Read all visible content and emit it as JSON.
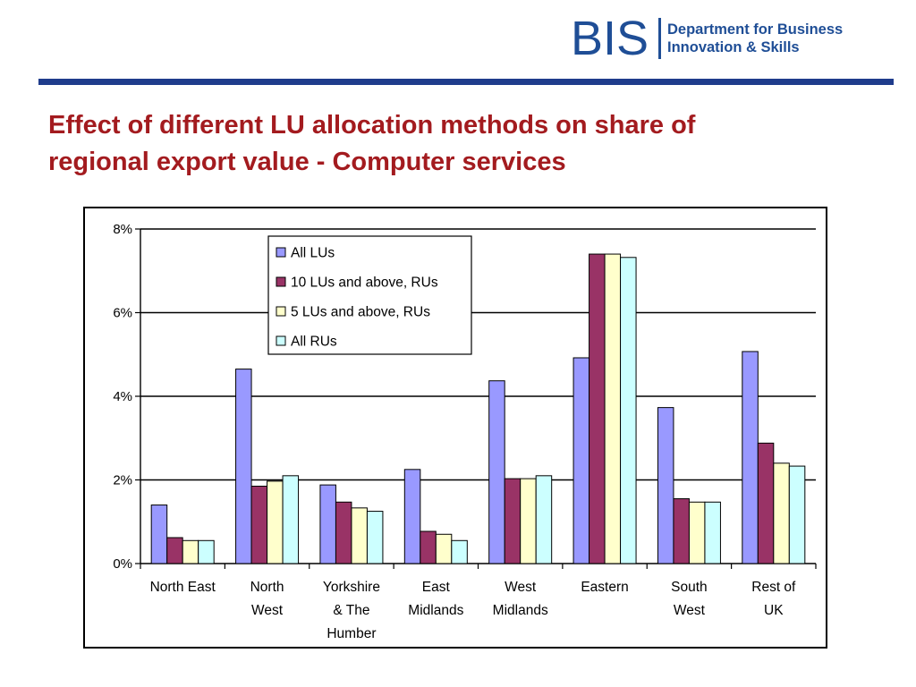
{
  "header": {
    "logo_mark": "BIS",
    "logo_line1": "Department for Business",
    "logo_line2": "Innovation & Skills"
  },
  "slide": {
    "title_line1": "Effect of different LU allocation methods on share of",
    "title_line2": "regional export value - Computer services"
  },
  "colors": {
    "brand_blue": "#1f4e96",
    "rule": "#1f3c8c",
    "title_red": "#a31b1f"
  },
  "chart_data": {
    "type": "bar",
    "categories": [
      [
        "North East"
      ],
      [
        "North",
        "West"
      ],
      [
        "Yorkshire",
        "& The",
        "Humber"
      ],
      [
        "East",
        "Midlands"
      ],
      [
        "West",
        "Midlands"
      ],
      [
        "Eastern"
      ],
      [
        "South",
        "West"
      ],
      [
        "Rest of",
        "UK"
      ]
    ],
    "series": [
      {
        "name": "All LUs",
        "color": "#9999ff",
        "values": [
          1.4,
          4.65,
          1.88,
          2.25,
          4.37,
          4.92,
          3.73,
          5.07
        ]
      },
      {
        "name": "10 LUs and above, RUs",
        "color": "#993366",
        "values": [
          0.62,
          1.85,
          1.47,
          0.77,
          2.03,
          7.4,
          1.55,
          2.88
        ]
      },
      {
        "name": "5 LUs and above, RUs",
        "color": "#ffffcc",
        "values": [
          0.55,
          1.97,
          1.33,
          0.7,
          2.03,
          7.4,
          1.47,
          2.4
        ]
      },
      {
        "name": "All RUs",
        "color": "#ccffff",
        "values": [
          0.55,
          2.1,
          1.25,
          0.55,
          2.1,
          7.32,
          1.47,
          2.33
        ]
      }
    ],
    "ylim": [
      0,
      8
    ],
    "yticks": [
      "0%",
      "2%",
      "4%",
      "6%",
      "8%"
    ],
    "grid": true,
    "legend_position": "top-center",
    "title": "",
    "xlabel": "",
    "ylabel": ""
  }
}
